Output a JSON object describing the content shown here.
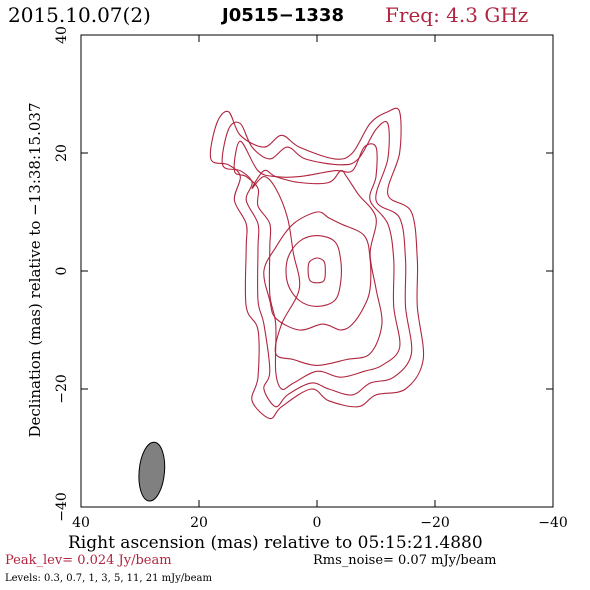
{
  "header": {
    "date": "2015.10.07(2)",
    "source": "J0515−1338",
    "frequency": "Freq: 4.3 GHz"
  },
  "axes": {
    "xlabel": "Right ascension (mas) relative to 05:15:21.4880",
    "ylabel": "Declination (mas) relative to −13:38:15.037",
    "xlim": [
      40,
      -40
    ],
    "ylim": [
      -40,
      40
    ],
    "xticks": [
      40,
      20,
      0,
      -20,
      -40
    ],
    "yticks": [
      -40,
      -20,
      0,
      20,
      40
    ]
  },
  "footer": {
    "peak": "Peak_lev=  0.024 Jy/beam",
    "rms": "Rms_noise= 0.07 mJy/beam",
    "levels": "Levels: 0.3, 0.7,   1,   3,   5,  11,  21 mJy/beam"
  },
  "colors": {
    "contour": "#b0253f",
    "beam": "#808080",
    "axis": "#000000"
  },
  "chart_data": {
    "type": "contour",
    "contour_levels_mJy": [
      0.3,
      0.7,
      1,
      3,
      5,
      11,
      21
    ],
    "peak_Jy_per_beam": 0.024,
    "rms_mJy_per_beam": 0.07,
    "beam": {
      "center_mas": [
        28,
        -34
      ],
      "major_mas": 10,
      "minor_mas": 4.3,
      "pa_deg": 5
    },
    "contours": [
      {
        "level": 0.3,
        "points": [
          [
            18,
            19
          ],
          [
            17,
            25
          ],
          [
            15,
            27
          ],
          [
            13,
            23
          ],
          [
            9,
            21
          ],
          [
            6,
            23
          ],
          [
            3,
            21
          ],
          [
            -3,
            19
          ],
          [
            -6,
            20
          ],
          [
            -9,
            25
          ],
          [
            -12,
            27
          ],
          [
            -14,
            27
          ],
          [
            -14,
            20
          ],
          [
            -12,
            13
          ],
          [
            -16,
            10
          ],
          [
            -17,
            2
          ],
          [
            -17,
            -6
          ],
          [
            -18,
            -15
          ],
          [
            -15,
            -20
          ],
          [
            -10,
            -21
          ],
          [
            -7,
            -23
          ],
          [
            -2,
            -22
          ],
          [
            1,
            -20
          ],
          [
            6,
            -23
          ],
          [
            8,
            -25
          ],
          [
            11,
            -22
          ],
          [
            10,
            -18
          ],
          [
            10,
            -10
          ],
          [
            12,
            -6
          ],
          [
            12,
            4
          ],
          [
            12,
            8
          ],
          [
            14,
            12
          ],
          [
            13,
            16
          ],
          [
            15,
            18
          ]
        ]
      },
      {
        "level": 0.7,
        "points": [
          [
            16,
            18
          ],
          [
            15,
            24
          ],
          [
            13,
            25
          ],
          [
            11,
            21
          ],
          [
            8,
            19
          ],
          [
            5,
            21
          ],
          [
            2,
            19
          ],
          [
            -4,
            18
          ],
          [
            -7,
            19
          ],
          [
            -10,
            24
          ],
          [
            -12,
            25
          ],
          [
            -12,
            19
          ],
          [
            -10,
            12
          ],
          [
            -14,
            9
          ],
          [
            -15,
            2
          ],
          [
            -15,
            -6
          ],
          [
            -16,
            -14
          ],
          [
            -13,
            -18
          ],
          [
            -9,
            -19
          ],
          [
            -6,
            -21
          ],
          [
            -2,
            -20
          ],
          [
            1,
            -19
          ],
          [
            5,
            -21
          ],
          [
            7,
            -23
          ],
          [
            9,
            -20
          ],
          [
            8,
            -17
          ],
          [
            9,
            -9
          ],
          [
            10,
            -5
          ],
          [
            10,
            4
          ],
          [
            10,
            8
          ],
          [
            12,
            12
          ],
          [
            11,
            15
          ],
          [
            13,
            17
          ]
        ]
      },
      {
        "level": 1,
        "points": [
          [
            14,
            17
          ],
          [
            13,
            22
          ],
          [
            10,
            17
          ],
          [
            7,
            16
          ],
          [
            3,
            16
          ],
          [
            -3,
            17
          ],
          [
            -6,
            17
          ],
          [
            -8,
            21
          ],
          [
            -10,
            21
          ],
          [
            -10,
            16
          ],
          [
            -9,
            12
          ],
          [
            -12,
            8
          ],
          [
            -13,
            2
          ],
          [
            -13,
            -6
          ],
          [
            -14,
            -13
          ],
          [
            -11,
            -16
          ],
          [
            -8,
            -17
          ],
          [
            -4,
            -18
          ],
          [
            0,
            -17
          ],
          [
            4,
            -19
          ],
          [
            6,
            -20
          ],
          [
            7,
            -17
          ],
          [
            7,
            -9
          ],
          [
            8,
            -4
          ],
          [
            8,
            4
          ],
          [
            8,
            8
          ],
          [
            10,
            11
          ],
          [
            10,
            14
          ],
          [
            12,
            16
          ]
        ]
      },
      {
        "level": 3,
        "points": [
          [
            11,
            14
          ],
          [
            9,
            16
          ],
          [
            7,
            14
          ],
          [
            5,
            9
          ],
          [
            4,
            3
          ],
          [
            3,
            -3
          ],
          [
            6,
            -9
          ],
          [
            7,
            -14
          ],
          [
            4,
            -15
          ],
          [
            0,
            -16
          ],
          [
            -5,
            -15
          ],
          [
            -9,
            -14
          ],
          [
            -11,
            -9
          ],
          [
            -10,
            -3
          ],
          [
            -9,
            3
          ],
          [
            -10,
            9
          ],
          [
            -7,
            13
          ],
          [
            -5,
            16
          ],
          [
            -4,
            17
          ],
          [
            -2,
            15
          ],
          [
            3,
            15
          ],
          [
            7,
            16
          ],
          [
            9,
            17
          ]
        ]
      },
      {
        "level": 5,
        "points": [
          [
            0,
            10
          ],
          [
            4,
            8
          ],
          [
            7,
            4
          ],
          [
            9,
            0
          ],
          [
            8,
            -5
          ],
          [
            7,
            -8
          ],
          [
            3,
            -10
          ],
          [
            -1,
            -9
          ],
          [
            -4,
            -10
          ],
          [
            -6,
            -9
          ],
          [
            -8,
            -6
          ],
          [
            -9,
            -3
          ],
          [
            -9,
            2
          ],
          [
            -8,
            6
          ],
          [
            -4,
            8
          ],
          [
            -2,
            9
          ]
        ]
      },
      {
        "level": 11,
        "points": [
          [
            0,
            6
          ],
          [
            3,
            5
          ],
          [
            5,
            2
          ],
          [
            5,
            -2
          ],
          [
            3,
            -5
          ],
          [
            0,
            -6
          ],
          [
            -3,
            -5
          ],
          [
            -4,
            -2
          ],
          [
            -4,
            2
          ],
          [
            -3,
            5
          ]
        ]
      },
      {
        "level": 21,
        "points": [
          [
            0,
            2.2
          ],
          [
            1.3,
            1.5
          ],
          [
            1.5,
            0
          ],
          [
            1.2,
            -1.6
          ],
          [
            0,
            -2
          ],
          [
            -1.2,
            -1.6
          ],
          [
            -1.4,
            0
          ],
          [
            -1.2,
            1.6
          ]
        ]
      }
    ]
  }
}
